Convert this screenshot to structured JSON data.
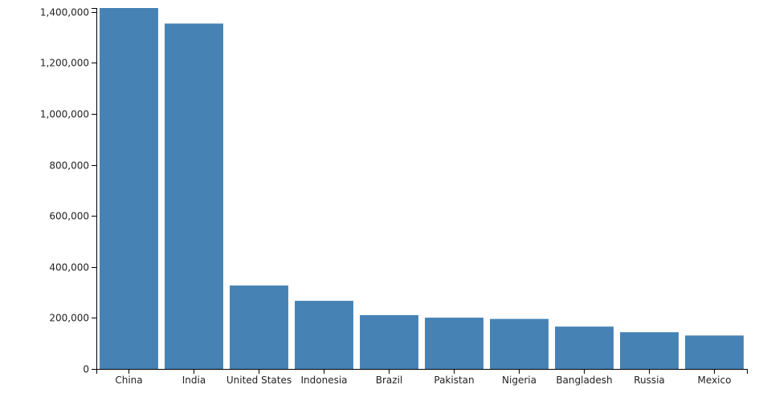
{
  "chart_data": {
    "type": "bar",
    "title": "",
    "xlabel": "",
    "ylabel": "",
    "categories": [
      "China",
      "India",
      "United States",
      "Indonesia",
      "Brazil",
      "Pakistan",
      "Nigeria",
      "Bangladesh",
      "Russia",
      "Mexico"
    ],
    "values": [
      1415000,
      1354000,
      327000,
      267000,
      211000,
      201000,
      196000,
      166000,
      144000,
      131000
    ],
    "ylim": [
      0,
      1415000
    ],
    "yticks": [
      0,
      200000,
      400000,
      600000,
      800000,
      1000000,
      1200000,
      1400000
    ],
    "ytick_labels": [
      "0",
      "200,000",
      "400,000",
      "600,000",
      "800,000",
      "1,000,000",
      "1,200,000",
      "1,400,000"
    ],
    "bar_color": "#4682b4",
    "grid": false,
    "legend": "none"
  }
}
